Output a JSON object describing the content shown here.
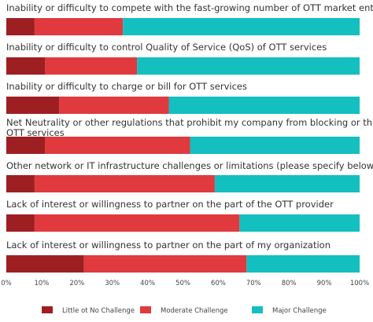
{
  "chart_data": {
    "type": "bar",
    "orientation": "horizontal",
    "stacked": true,
    "title": "",
    "xlabel": "",
    "ylabel": "",
    "xlim": [
      0,
      100
    ],
    "x_ticks": [
      0,
      10,
      20,
      30,
      40,
      50,
      60,
      70,
      80,
      90,
      100
    ],
    "x_tick_labels": [
      "0%",
      "10%",
      "20%",
      "30%",
      "40%",
      "50%",
      "60%",
      "70%",
      "80%",
      "90%",
      "100%"
    ],
    "grid": false,
    "legend_position": "bottom",
    "categories": [
      "Inability or difficulty to compete with the fast-growing number of OTT market entrants",
      "Inability or difficulty to control Quality of Service (QoS) of OTT services",
      "Inability or difficulty to charge or bill for OTT services",
      "Net Neutrality or other regulations that prohibit my company from blocking or throttling OTT services",
      "Other network or IT infrastructure challenges or limitations (please specify below)",
      "Lack of interest or willingness to partner on the part of the OTT provider",
      "Lack of interest or willingness to partner on the part of my organization"
    ],
    "category_lines": [
      [
        "Inability or difficulty to compete with the fast-growing number of OTT market entrants"
      ],
      [
        "Inability or difficulty to control Quality of Service (QoS) of OTT services"
      ],
      [
        "Inability or difficulty to charge or bill for OTT services"
      ],
      [
        "Net Neutrality or other regulations that prohibit my company from blocking or throttling",
        "OTT services"
      ],
      [
        "Other network or IT infrastructure challenges or limitations (please specify below)"
      ],
      [
        "Lack of interest or willingness to partner on the part of the OTT provider"
      ],
      [
        "Lack of interest or willingness to partner on the part of my organization"
      ]
    ],
    "series": [
      {
        "name": "Little ot No Challenge",
        "color": "#9e1f22",
        "values": [
          8,
          11,
          15,
          11,
          8,
          8,
          22
        ]
      },
      {
        "name": "Moderate Challenge",
        "color": "#e03a3e",
        "values": [
          25,
          26,
          31,
          41,
          51,
          58,
          46
        ]
      },
      {
        "name": "Major Challenge",
        "color": "#13bfbf",
        "values": [
          67,
          63,
          54,
          48,
          41,
          34,
          32
        ]
      }
    ]
  }
}
